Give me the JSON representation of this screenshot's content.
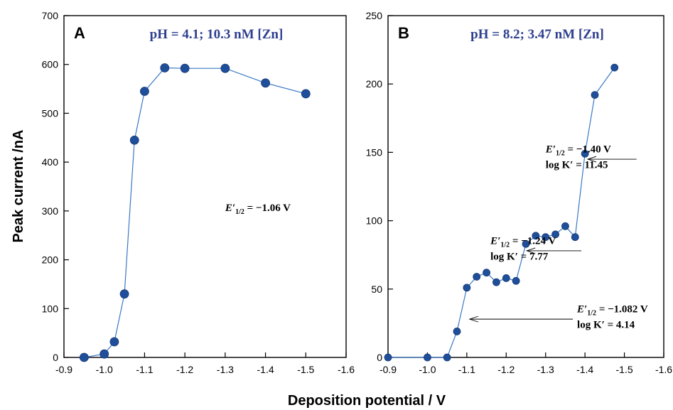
{
  "xlabel": "Deposition potential / V",
  "ylabel": "Peak current /nA",
  "chart_data": [
    {
      "type": "line",
      "panel": "A",
      "title": "pH = 4.1; 10.3 nM [Zn]",
      "xlim": [
        -0.9,
        -1.6
      ],
      "ylim": [
        0,
        700
      ],
      "xticks": [
        "-0.9",
        "-1.0",
        "-1.1",
        "-1.2",
        "-1.3",
        "-1.4",
        "-1.5",
        "-1.6"
      ],
      "xtick_values": [
        -0.9,
        -1.0,
        -1.1,
        -1.2,
        -1.3,
        -1.4,
        -1.5,
        -1.6
      ],
      "yticks": [
        "0",
        "100",
        "200",
        "300",
        "400",
        "500",
        "600",
        "700"
      ],
      "ytick_values": [
        0,
        100,
        200,
        300,
        400,
        500,
        600,
        700
      ],
      "x": [
        -0.95,
        -1.0,
        -1.025,
        -1.05,
        -1.075,
        -1.1,
        -1.15,
        -1.2,
        -1.3,
        -1.4,
        -1.5
      ],
      "y": [
        0,
        7,
        32,
        130,
        445,
        545,
        593,
        592,
        592,
        562,
        540
      ],
      "annotations": [
        {
          "e_label": "E′",
          "sub": "1/2",
          "value": " = −1.06 V",
          "at": [
            -1.3,
            300
          ]
        }
      ]
    },
    {
      "type": "line",
      "panel": "B",
      "title": "pH = 8.2; 3.47 nM [Zn]",
      "xlim": [
        -0.9,
        -1.6
      ],
      "ylim": [
        0,
        250
      ],
      "xticks": [
        "-0.9",
        "-1.0",
        "-1.1",
        "-1.2",
        "-1.3",
        "-1.4",
        "-1.5",
        "-1.6"
      ],
      "xtick_values": [
        -0.9,
        -1.0,
        -1.1,
        -1.2,
        -1.3,
        -1.4,
        -1.5,
        -1.6
      ],
      "yticks": [
        "0",
        "50",
        "100",
        "150",
        "200",
        "250"
      ],
      "ytick_values": [
        0,
        50,
        100,
        150,
        200,
        250
      ],
      "x": [
        -0.9,
        -1.0,
        -1.05,
        -1.075,
        -1.1,
        -1.125,
        -1.15,
        -1.175,
        -1.2,
        -1.225,
        -1.25,
        -1.275,
        -1.3,
        -1.325,
        -1.35,
        -1.375,
        -1.4,
        -1.425,
        -1.475
      ],
      "y": [
        0,
        0,
        0,
        19,
        51,
        59,
        62,
        55,
        58,
        56,
        83,
        89,
        88,
        90,
        96,
        88,
        149,
        192,
        212
      ],
      "annotations": [
        {
          "e_label": "E′",
          "sub": "1/2",
          "value": " = −1.40 V",
          "logk": "log K′ = 11.45",
          "at": [
            -1.3,
            150
          ],
          "arrow_to": [
            -1.4,
            145
          ]
        },
        {
          "e_label": "E′",
          "sub": "1/2",
          "value": " = −1.24 V",
          "logk": "log K′ = 7.77",
          "at": [
            -1.16,
            83
          ],
          "arrow_to": [
            -1.245,
            78
          ]
        },
        {
          "e_label": "E′",
          "sub": "1/2",
          "value": " = −1.082 V",
          "logk": "log K′ = 4.14",
          "at": [
            -1.38,
            33
          ],
          "arrow_to": [
            -1.1,
            28
          ]
        }
      ]
    }
  ]
}
